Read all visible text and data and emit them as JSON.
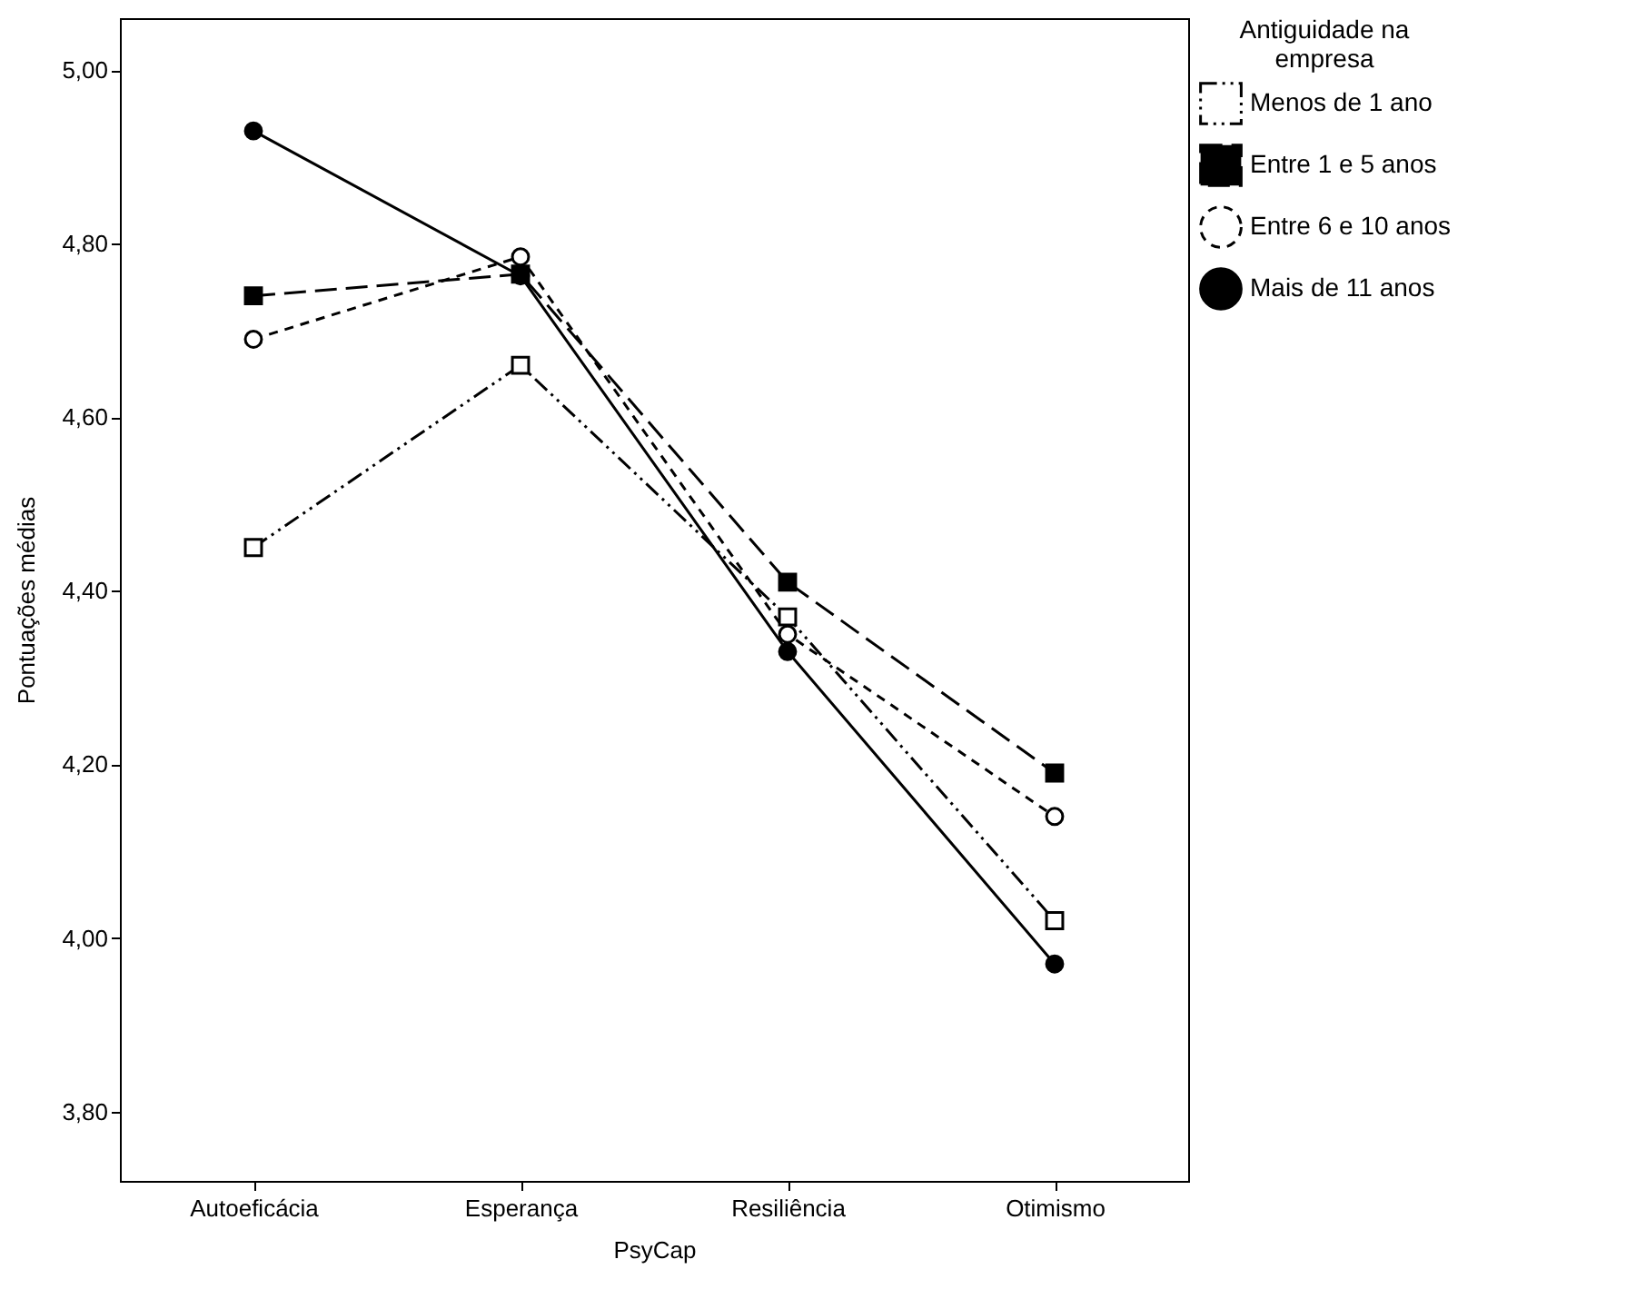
{
  "chart_data": {
    "type": "line",
    "xlabel": "PsyCap",
    "ylabel": "Pontuações médias",
    "legend_title": "Antiguidade na empresa",
    "legend": "top right",
    "grid": false,
    "categories": [
      "Autoeficácia",
      "Esperança",
      "Resiliência",
      "Otimismo"
    ],
    "ylim": [
      3.72,
      5.06
    ],
    "yticks": [
      {
        "value": 3.8,
        "label": "3,80"
      },
      {
        "value": 4.0,
        "label": "4,00"
      },
      {
        "value": 4.2,
        "label": "4,20"
      },
      {
        "value": 4.4,
        "label": "4,40"
      },
      {
        "value": 4.6,
        "label": "4,60"
      },
      {
        "value": 4.8,
        "label": "4,80"
      },
      {
        "value": 5.0,
        "label": "5,00"
      }
    ],
    "series": [
      {
        "name": "Menos de 1 ano",
        "color": "#000000",
        "marker": "square",
        "line_style": "dotted",
        "values": [
          4.45,
          4.66,
          4.37,
          4.02
        ]
      },
      {
        "name": "Entre 1 e 5 anos",
        "color": "#000000",
        "marker": "square",
        "line_style": "dashed",
        "values": [
          4.74,
          4.765,
          4.41,
          4.19
        ]
      },
      {
        "name": "Entre 6 e 10 anos",
        "color": "#000000",
        "marker": "circle",
        "line_style": "dashed",
        "values": [
          4.69,
          4.785,
          4.35,
          4.14
        ]
      },
      {
        "name": "Mais de 11 anos",
        "color": "#000000",
        "marker": "circle",
        "line_style": "solid",
        "values": [
          4.93,
          4.763,
          4.33,
          3.97
        ]
      }
    ]
  }
}
